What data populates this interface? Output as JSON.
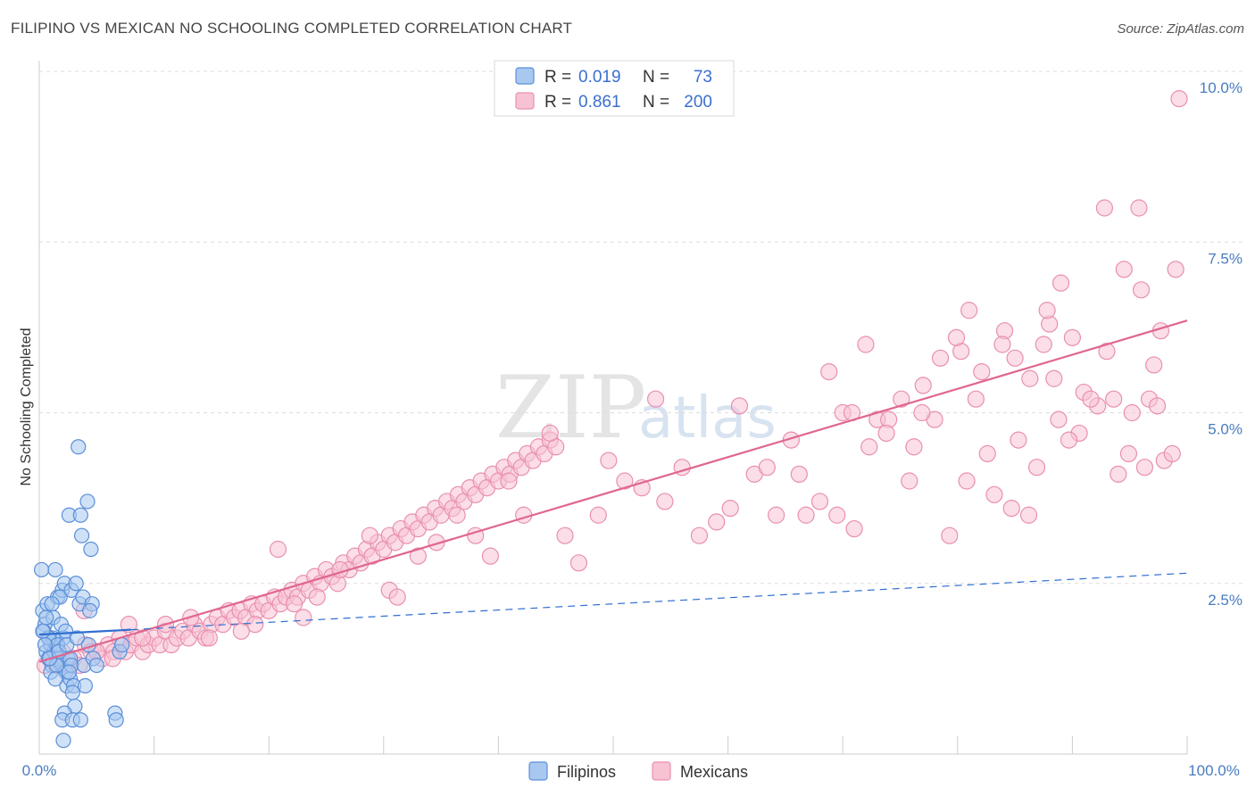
{
  "title": "FILIPINO VS MEXICAN NO SCHOOLING COMPLETED CORRELATION CHART",
  "source": "Source: ZipAtlas.com",
  "watermark": {
    "zip": "ZIP",
    "atlas": "atlas"
  },
  "colors": {
    "filipino_fill": "#a8c8f0",
    "filipino_stroke": "#5b8fd8",
    "filipino_line": "#2f6fd0",
    "mexican_fill": "#f7c3d3",
    "mexican_stroke": "#e98fb0",
    "mexican_line": "#e0668f",
    "grid": "#dddddd",
    "tick": "#4a7cc0"
  },
  "legend": {
    "filipino": {
      "r_label": "R =",
      "r_value": "0.019",
      "n_label": "N =",
      "n_value": "73"
    },
    "mexican": {
      "r_label": "R =",
      "r_value": "0.861",
      "n_label": "N =",
      "n_value": "200"
    }
  },
  "bottom_legend": [
    "Filipinos",
    "Mexicans"
  ],
  "chart_data": {
    "type": "scatter",
    "title": "FILIPINO VS MEXICAN NO SCHOOLING COMPLETED CORRELATION CHART",
    "xlabel": "",
    "ylabel": "No Schooling Completed",
    "xlim": [
      0,
      100
    ],
    "ylim": [
      0,
      10
    ],
    "x_tick_labels": [
      "0.0%",
      "100.0%"
    ],
    "y_ticks": [
      2.5,
      5.0,
      7.5,
      10.0
    ],
    "y_tick_labels": [
      "2.5%",
      "5.0%",
      "7.5%",
      "10.0%"
    ],
    "series": [
      {
        "name": "Filipinos",
        "r": 0.019,
        "n": 73,
        "trend": {
          "x0": 0,
          "y0": 1.75,
          "x1": 100,
          "y1": 2.65,
          "solid_until_x": 8
        },
        "points": [
          [
            0.3,
            2.1
          ],
          [
            0.5,
            1.9
          ],
          [
            0.6,
            1.5
          ],
          [
            0.8,
            1.4
          ],
          [
            1.0,
            1.6
          ],
          [
            1.2,
            2.0
          ],
          [
            0.4,
            1.8
          ],
          [
            0.7,
            2.2
          ],
          [
            0.9,
            1.7
          ],
          [
            1.1,
            1.3
          ],
          [
            1.3,
            1.5
          ],
          [
            1.5,
            1.6
          ],
          [
            1.7,
            1.4
          ],
          [
            1.9,
            1.3
          ],
          [
            2.1,
            1.7
          ],
          [
            2.3,
            1.2
          ],
          [
            2.5,
            1.4
          ],
          [
            0.2,
            2.7
          ],
          [
            1.4,
            2.7
          ],
          [
            1.6,
            2.3
          ],
          [
            2.0,
            2.4
          ],
          [
            1.8,
            2.3
          ],
          [
            2.2,
            2.5
          ],
          [
            2.8,
            2.4
          ],
          [
            3.2,
            2.5
          ],
          [
            3.5,
            2.2
          ],
          [
            3.8,
            2.3
          ],
          [
            4.5,
            3.0
          ],
          [
            2.6,
            3.5
          ],
          [
            3.6,
            3.5
          ],
          [
            4.2,
            3.7
          ],
          [
            3.7,
            3.2
          ],
          [
            3.4,
            4.5
          ],
          [
            2.4,
            1.0
          ],
          [
            2.7,
            1.1
          ],
          [
            3.0,
            1.0
          ],
          [
            2.9,
            0.9
          ],
          [
            4.0,
            1.0
          ],
          [
            3.1,
            0.7
          ],
          [
            2.2,
            0.6
          ],
          [
            2.0,
            0.5
          ],
          [
            2.9,
            0.5
          ],
          [
            3.6,
            0.5
          ],
          [
            6.6,
            0.6
          ],
          [
            6.7,
            0.5
          ],
          [
            2.1,
            0.2
          ],
          [
            1.0,
            1.2
          ],
          [
            1.5,
            1.3
          ],
          [
            2.7,
            1.4
          ],
          [
            2.8,
            1.3
          ],
          [
            3.9,
            1.3
          ],
          [
            4.3,
            1.6
          ],
          [
            4.7,
            1.4
          ],
          [
            5.0,
            1.3
          ],
          [
            7.0,
            1.5
          ],
          [
            7.2,
            1.6
          ],
          [
            1.2,
            1.7
          ],
          [
            0.8,
            1.7
          ],
          [
            1.6,
            1.6
          ],
          [
            1.9,
            1.9
          ],
          [
            2.3,
            1.8
          ],
          [
            0.3,
            1.8
          ],
          [
            0.6,
            2.0
          ],
          [
            1.1,
            2.2
          ],
          [
            4.6,
            2.2
          ],
          [
            4.4,
            2.1
          ],
          [
            0.9,
            1.4
          ],
          [
            1.7,
            1.5
          ],
          [
            2.4,
            1.6
          ],
          [
            3.3,
            1.7
          ],
          [
            0.5,
            1.6
          ],
          [
            1.4,
            1.1
          ],
          [
            2.6,
            1.2
          ]
        ]
      },
      {
        "name": "Mexicans",
        "r": 0.861,
        "n": 200,
        "trend": {
          "x0": 0,
          "y0": 1.35,
          "x1": 100,
          "y1": 6.35
        },
        "points": [
          [
            0.5,
            1.3
          ],
          [
            1.0,
            1.4
          ],
          [
            1.5,
            1.3
          ],
          [
            2.0,
            1.5
          ],
          [
            2.5,
            1.3
          ],
          [
            3.0,
            1.4
          ],
          [
            3.5,
            1.3
          ],
          [
            4.0,
            1.6
          ],
          [
            4.5,
            1.5
          ],
          [
            5.0,
            1.5
          ],
          [
            5.5,
            1.4
          ],
          [
            6.0,
            1.6
          ],
          [
            6.5,
            1.5
          ],
          [
            7.0,
            1.7
          ],
          [
            7.5,
            1.5
          ],
          [
            8.0,
            1.6
          ],
          [
            8.5,
            1.7
          ],
          [
            9.0,
            1.5
          ],
          [
            9.5,
            1.6
          ],
          [
            10.0,
            1.7
          ],
          [
            10.5,
            1.6
          ],
          [
            11.0,
            1.8
          ],
          [
            11.5,
            1.6
          ],
          [
            12.0,
            1.7
          ],
          [
            12.5,
            1.8
          ],
          [
            13.0,
            1.7
          ],
          [
            13.5,
            1.9
          ],
          [
            14.0,
            1.8
          ],
          [
            14.5,
            1.7
          ],
          [
            15.0,
            1.9
          ],
          [
            15.5,
            2.0
          ],
          [
            16.0,
            1.9
          ],
          [
            16.5,
            2.1
          ],
          [
            17.0,
            2.0
          ],
          [
            17.5,
            2.1
          ],
          [
            18.0,
            2.0
          ],
          [
            18.5,
            2.2
          ],
          [
            19.0,
            2.1
          ],
          [
            19.5,
            2.2
          ],
          [
            20.0,
            2.1
          ],
          [
            20.5,
            2.3
          ],
          [
            21.0,
            2.2
          ],
          [
            21.5,
            2.3
          ],
          [
            22.0,
            2.4
          ],
          [
            22.5,
            2.3
          ],
          [
            23.0,
            2.5
          ],
          [
            23.5,
            2.4
          ],
          [
            24.0,
            2.6
          ],
          [
            24.5,
            2.5
          ],
          [
            25.0,
            2.7
          ],
          [
            25.5,
            2.6
          ],
          [
            26.0,
            2.5
          ],
          [
            26.5,
            2.8
          ],
          [
            27.0,
            2.7
          ],
          [
            27.5,
            2.9
          ],
          [
            28.0,
            2.8
          ],
          [
            28.5,
            3.0
          ],
          [
            29.0,
            2.9
          ],
          [
            29.5,
            3.1
          ],
          [
            30.0,
            3.0
          ],
          [
            30.5,
            3.2
          ],
          [
            31.0,
            3.1
          ],
          [
            31.5,
            3.3
          ],
          [
            32.0,
            3.2
          ],
          [
            32.5,
            3.4
          ],
          [
            33.0,
            3.3
          ],
          [
            33.5,
            3.5
          ],
          [
            34.0,
            3.4
          ],
          [
            34.5,
            3.6
          ],
          [
            35.0,
            3.5
          ],
          [
            35.5,
            3.7
          ],
          [
            36.0,
            3.6
          ],
          [
            36.5,
            3.8
          ],
          [
            37.0,
            3.7
          ],
          [
            37.5,
            3.9
          ],
          [
            38.0,
            3.8
          ],
          [
            38.5,
            4.0
          ],
          [
            39.0,
            3.9
          ],
          [
            39.5,
            4.1
          ],
          [
            40.0,
            4.0
          ],
          [
            40.5,
            4.2
          ],
          [
            41.0,
            4.1
          ],
          [
            41.5,
            4.3
          ],
          [
            42.0,
            4.2
          ],
          [
            42.5,
            4.4
          ],
          [
            43.0,
            4.3
          ],
          [
            43.5,
            4.5
          ],
          [
            44.0,
            4.4
          ],
          [
            44.5,
            4.6
          ],
          [
            45.0,
            4.5
          ],
          [
            18.8,
            1.9
          ],
          [
            17.6,
            1.8
          ],
          [
            11.0,
            1.9
          ],
          [
            14.8,
            1.7
          ],
          [
            13.2,
            2.0
          ],
          [
            7.8,
            1.9
          ],
          [
            3.9,
            2.1
          ],
          [
            5.0,
            1.5
          ],
          [
            6.4,
            1.4
          ],
          [
            9.0,
            1.7
          ],
          [
            20.8,
            3.0
          ],
          [
            22.2,
            2.2
          ],
          [
            23.0,
            2.0
          ],
          [
            24.2,
            2.3
          ],
          [
            26.2,
            2.7
          ],
          [
            28.8,
            3.2
          ],
          [
            30.5,
            2.4
          ],
          [
            31.2,
            2.3
          ],
          [
            33.0,
            2.9
          ],
          [
            34.6,
            3.1
          ],
          [
            36.4,
            3.5
          ],
          [
            38.0,
            3.2
          ],
          [
            39.3,
            2.9
          ],
          [
            40.9,
            4.0
          ],
          [
            42.2,
            3.5
          ],
          [
            44.5,
            4.7
          ],
          [
            45.8,
            3.2
          ],
          [
            47.0,
            2.8
          ],
          [
            48.7,
            3.5
          ],
          [
            49.6,
            4.3
          ],
          [
            51.0,
            4.0
          ],
          [
            52.5,
            3.9
          ],
          [
            53.7,
            5.2
          ],
          [
            54.5,
            3.7
          ],
          [
            56.0,
            4.2
          ],
          [
            57.5,
            3.2
          ],
          [
            59.0,
            3.4
          ],
          [
            60.2,
            3.6
          ],
          [
            61.0,
            5.1
          ],
          [
            62.3,
            4.1
          ],
          [
            63.4,
            4.2
          ],
          [
            64.2,
            3.5
          ],
          [
            65.5,
            4.6
          ],
          [
            66.8,
            3.5
          ],
          [
            68.0,
            3.7
          ],
          [
            69.5,
            3.5
          ],
          [
            70.0,
            5.0
          ],
          [
            71.0,
            3.3
          ],
          [
            72.3,
            4.5
          ],
          [
            73.0,
            4.9
          ],
          [
            74.0,
            4.9
          ],
          [
            75.1,
            5.2
          ],
          [
            75.8,
            4.0
          ],
          [
            77.0,
            5.4
          ],
          [
            78.0,
            4.9
          ],
          [
            79.3,
            3.2
          ],
          [
            80.3,
            5.9
          ],
          [
            81.0,
            6.5
          ],
          [
            82.1,
            5.6
          ],
          [
            83.2,
            3.8
          ],
          [
            84.1,
            6.2
          ],
          [
            85.0,
            5.8
          ],
          [
            86.3,
            5.5
          ],
          [
            87.5,
            6.0
          ],
          [
            88.0,
            6.3
          ],
          [
            89.0,
            6.9
          ],
          [
            90.0,
            6.1
          ],
          [
            91.0,
            5.3
          ],
          [
            92.2,
            5.1
          ],
          [
            93.0,
            5.9
          ],
          [
            94.0,
            4.1
          ],
          [
            95.2,
            5.0
          ],
          [
            96.0,
            6.8
          ],
          [
            97.1,
            5.7
          ],
          [
            98.0,
            4.3
          ],
          [
            99.0,
            7.1
          ],
          [
            78.5,
            5.8
          ],
          [
            76.2,
            4.5
          ],
          [
            80.8,
            4.0
          ],
          [
            82.6,
            4.4
          ],
          [
            84.7,
            3.6
          ],
          [
            86.9,
            4.2
          ],
          [
            88.4,
            5.5
          ],
          [
            90.6,
            4.7
          ],
          [
            92.8,
            8.0
          ],
          [
            94.5,
            7.1
          ],
          [
            96.7,
            5.2
          ],
          [
            97.7,
            6.2
          ],
          [
            99.3,
            9.6
          ],
          [
            95.8,
            8.0
          ],
          [
            86.2,
            3.5
          ],
          [
            87.8,
            6.5
          ],
          [
            83.9,
            6.0
          ],
          [
            81.6,
            5.2
          ],
          [
            79.9,
            6.1
          ],
          [
            72.0,
            6.0
          ],
          [
            73.8,
            4.7
          ],
          [
            66.2,
            4.1
          ],
          [
            68.8,
            5.6
          ],
          [
            70.8,
            5.0
          ],
          [
            76.9,
            5.0
          ],
          [
            98.7,
            4.4
          ],
          [
            97.4,
            5.1
          ],
          [
            91.6,
            5.2
          ],
          [
            89.7,
            4.6
          ],
          [
            88.8,
            4.9
          ],
          [
            85.3,
            4.6
          ],
          [
            93.6,
            5.2
          ],
          [
            94.9,
            4.4
          ],
          [
            96.3,
            4.2
          ]
        ]
      }
    ]
  }
}
